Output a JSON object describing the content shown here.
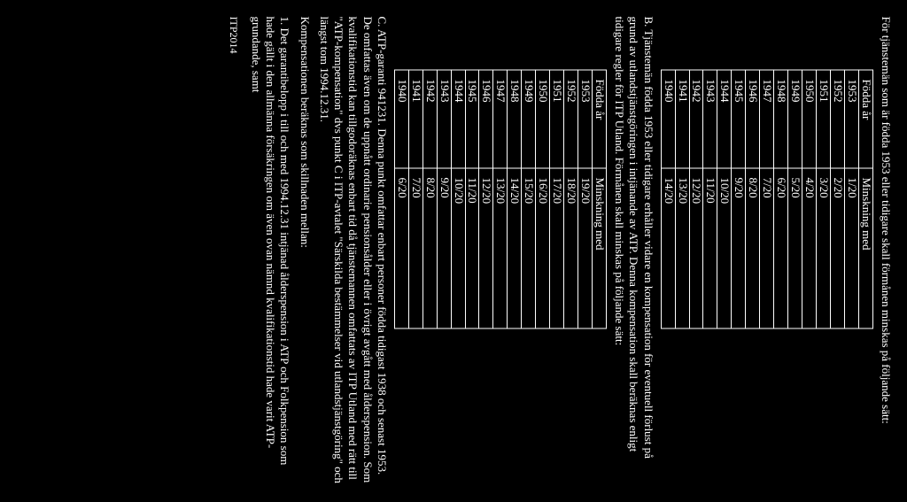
{
  "intro": "För tjänstemän som är födda 1953 eller tidigare skall förmånen minskas på följande sätt:",
  "table1": {
    "headers": [
      "Födda år",
      "Minskning med"
    ],
    "rows": [
      [
        "1953",
        "1/20"
      ],
      [
        "1952",
        "2/20"
      ],
      [
        "1951",
        "3/20"
      ],
      [
        "1950",
        "4/20"
      ],
      [
        "1949",
        "5/20"
      ],
      [
        "1948",
        "6/20"
      ],
      [
        "1947",
        "7/20"
      ],
      [
        "1946",
        "8/20"
      ],
      [
        "1945",
        "9/20"
      ],
      [
        "1944",
        "10/20"
      ],
      [
        "1943",
        "11/20"
      ],
      [
        "1942",
        "12/20"
      ],
      [
        "1941",
        "13/20"
      ],
      [
        "1940",
        "14/20"
      ]
    ]
  },
  "sectionB": "B. Tjänstemän födda 1953 eller tidigare erhåller vidare en kompensation för eventuell förlust på grund av utlandstjänstgöringen i intjänande av ATP. Denna kompensation skall beräknas enligt tidigare regler för ITP Utland. Förmånen skall minskas på följande sätt:",
  "table2": {
    "headers": [
      "Födda år",
      "Minskning med"
    ],
    "rows": [
      [
        "1953",
        "19/20"
      ],
      [
        "1952",
        "18/20"
      ],
      [
        "1951",
        "17/20"
      ],
      [
        "1950",
        "16/20"
      ],
      [
        "1949",
        "15/20"
      ],
      [
        "1948",
        "14/20"
      ],
      [
        "1947",
        "13/20"
      ],
      [
        "1946",
        "12/20"
      ],
      [
        "1945",
        "11/20"
      ],
      [
        "1944",
        "10/20"
      ],
      [
        "1943",
        "9/20"
      ],
      [
        "1942",
        "8/20"
      ],
      [
        "1941",
        "7/20"
      ],
      [
        "1940",
        "6/20"
      ]
    ]
  },
  "sectionC": "C. ATP-garanti 941231. Denna punkt omfattar enbart personer födda tidigast 1938 och senast 1953. De omfattas även om de uppnått ordinarie pensionsålder eller i övrigt avgått med ålderspension. Som kvalifikationstid kan tillgodoräknas enbart tid då tjänstemannen omfattats av ITP Utland med rätt till \"ATP-kompensation\" dvs punkt C i ITP-avtalet \"Särskilda bestämmelser vid utlandstjänstgöring\" och längst tom 1994.12.31.",
  "kompLine": "Kompensationen beräknas som skillnaden mellan:",
  "item1": "1. Det garantibelopp i till och med 1994.12.31 intjänad ålderspension i ATP och Folkpension som hade gällt i den allmänna försäkringen om även ovan nämnd kvalifikationstid hade varit ATP-grundande, samt",
  "footer": "ITP2014"
}
